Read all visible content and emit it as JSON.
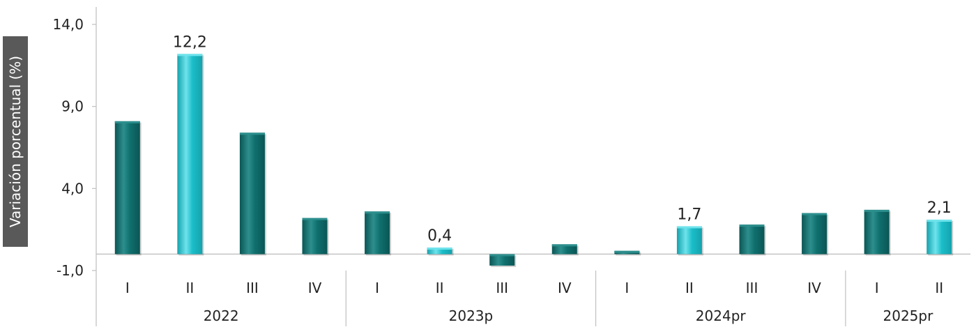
{
  "chart_data": {
    "type": "bar",
    "ylabel": "Variación porcentual (%)",
    "ylim": [
      -1.0,
      14.0
    ],
    "yticks": [
      "14,0",
      "9,0",
      "4,0",
      "-1,0"
    ],
    "ytick_values": [
      14.0,
      9.0,
      4.0,
      -1.0
    ],
    "groups": [
      {
        "label": "2022",
        "quarters": [
          "I",
          "II",
          "III",
          "IV"
        ]
      },
      {
        "label": "2023p",
        "quarters": [
          "I",
          "II",
          "III",
          "IV"
        ]
      },
      {
        "label": "2024pr",
        "quarters": [
          "I",
          "II",
          "III",
          "IV"
        ]
      },
      {
        "label": "2025pr",
        "quarters": [
          "I",
          "II"
        ]
      }
    ],
    "categories": [
      "2022 I",
      "2022 II",
      "2022 III",
      "2022 IV",
      "2023p I",
      "2023p II",
      "2023p III",
      "2023p IV",
      "2024pr I",
      "2024pr II",
      "2024pr III",
      "2024pr IV",
      "2025pr I",
      "2025pr II"
    ],
    "values": [
      8.1,
      12.2,
      7.4,
      2.2,
      2.6,
      0.4,
      -0.7,
      0.6,
      0.2,
      1.7,
      1.8,
      2.5,
      2.7,
      2.1
    ],
    "highlighted": [
      false,
      true,
      false,
      false,
      false,
      true,
      false,
      false,
      false,
      true,
      false,
      false,
      false,
      true
    ],
    "data_labels": [
      {
        "index": 1,
        "text": "12,2"
      },
      {
        "index": 5,
        "text": "0,4"
      },
      {
        "index": 9,
        "text": "1,7"
      },
      {
        "index": 13,
        "text": "2,1"
      }
    ],
    "colors": {
      "dark_top": "#2d8f8d",
      "dark_mid": "#0f706e",
      "dark_bottom": "#0a5655",
      "light_top": "#6fe3ec",
      "light_mid": "#1bbec9",
      "light_bottom": "#14a2ad",
      "axis": "#bfbfbf",
      "ylabel_bg": "#595959",
      "text": "#222222"
    },
    "grid": false,
    "legend": "none"
  }
}
